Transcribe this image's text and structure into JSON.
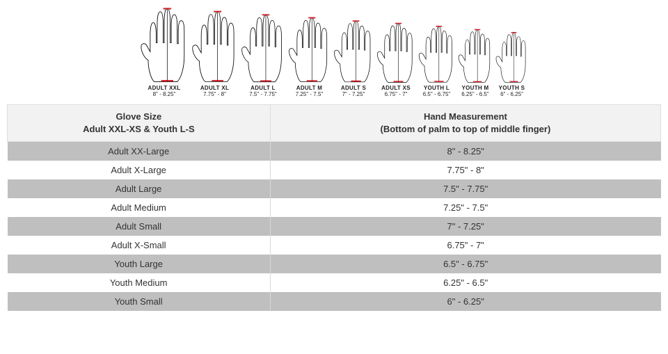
{
  "hands": {
    "items": [
      {
        "label": "ADULT XXL",
        "range": "8\" - 8.25\"",
        "scale": 1.0
      },
      {
        "label": "ADULT XL",
        "range": "7.75\" - 8\"",
        "scale": 0.96
      },
      {
        "label": "ADULT L",
        "range": "7.5\" - 7.75\"",
        "scale": 0.92
      },
      {
        "label": "ADULT M",
        "range": "7.25\" - 7.5\"",
        "scale": 0.88
      },
      {
        "label": "ADULT S",
        "range": "7\" - 7.25\"",
        "scale": 0.84
      },
      {
        "label": "ADULT XS",
        "range": "6.75\" - 7\"",
        "scale": 0.8
      },
      {
        "label": "YOUTH L",
        "range": "6.5\" - 6.75\"",
        "scale": 0.76
      },
      {
        "label": "YOUTH M",
        "range": "6.25\" - 6.5\"",
        "scale": 0.72
      },
      {
        "label": "YOUTH S",
        "range": "6\" - 6.25\"",
        "scale": 0.68
      }
    ],
    "base_width": 72,
    "base_height": 110,
    "stroke_color": "#000000",
    "fill_color": "#ffffff",
    "marker_color": "#d7282f",
    "measure_line_color": "#000000"
  },
  "table": {
    "header": {
      "col1_line1": "Glove Size",
      "col1_line2": "Adult XXL-XS & Youth L-S",
      "col2_line1": "Hand Measurement",
      "col2_line2": "(Bottom of palm to top of middle finger)"
    },
    "rows": [
      {
        "size": "Adult XX-Large",
        "measurement": "8\" - 8.25\""
      },
      {
        "size": "Adult X-Large",
        "measurement": "7.75\" - 8\""
      },
      {
        "size": "Adult Large",
        "measurement": "7.5\" - 7.75\""
      },
      {
        "size": "Adult Medium",
        "measurement": "7.25\" - 7.5\""
      },
      {
        "size": "Adult Small",
        "measurement": "7\" - 7.25\""
      },
      {
        "size": "Adult X-Small",
        "measurement": "6.75\" - 7\""
      },
      {
        "size": "Youth Large",
        "measurement": "6.5\" - 6.75\""
      },
      {
        "size": "Youth Medium",
        "measurement": "6.25\" - 6.5\""
      },
      {
        "size": "Youth Small",
        "measurement": "6\" - 6.25\""
      }
    ],
    "colors": {
      "header_bg": "#f2f2f2",
      "row_odd_bg": "#bfbfbf",
      "row_even_bg": "#ffffff",
      "border": "#dddddd",
      "text": "#333333"
    }
  }
}
